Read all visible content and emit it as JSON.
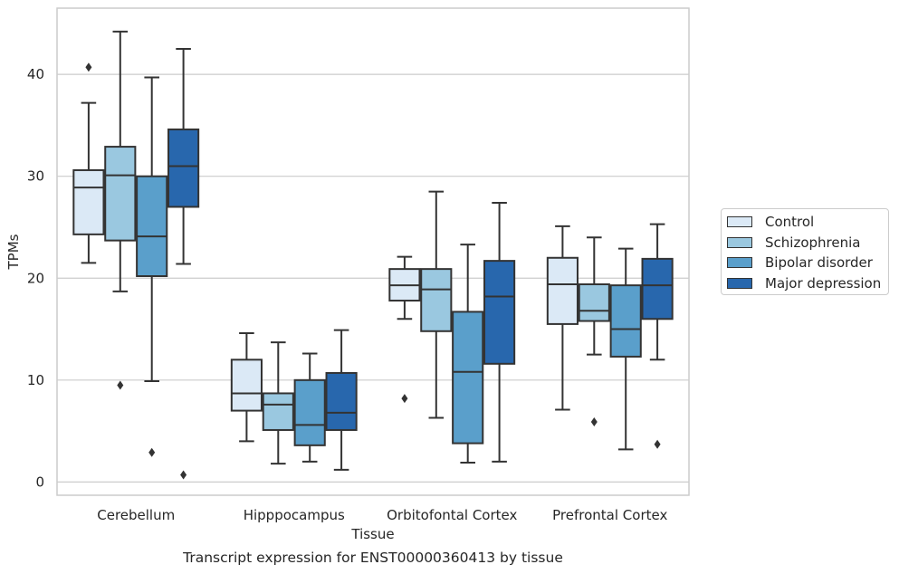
{
  "chart_data": {
    "type": "boxplot",
    "title": "Transcript expression for ENST00000360413 by tissue",
    "xlabel": "Tissue",
    "ylabel": "TPMs",
    "ylim": [
      -1.3,
      46.5
    ],
    "yticks": [
      0,
      10,
      20,
      30,
      40
    ],
    "grid": true,
    "legend_position": "right",
    "categories": [
      "Cerebellum",
      "Hipppocampus",
      "Orbitofontal Cortex",
      "Prefrontal Cortex"
    ],
    "series": [
      {
        "name": "Control",
        "color": "#dbe9f6",
        "boxes": [
          {
            "q1": 24.3,
            "median": 28.9,
            "q3": 30.6,
            "whisker_low": 21.5,
            "whisker_high": 37.2,
            "outliers": [
              40.7
            ]
          },
          {
            "q1": 7.0,
            "median": 8.7,
            "q3": 12.0,
            "whisker_low": 4.0,
            "whisker_high": 14.6,
            "outliers": []
          },
          {
            "q1": 17.8,
            "median": 19.3,
            "q3": 20.9,
            "whisker_low": 16.0,
            "whisker_high": 22.1,
            "outliers": [
              8.2
            ]
          },
          {
            "q1": 15.5,
            "median": 19.4,
            "q3": 22.0,
            "whisker_low": 7.1,
            "whisker_high": 25.1,
            "outliers": []
          }
        ]
      },
      {
        "name": "Schizophrenia",
        "color": "#9ac8e0",
        "boxes": [
          {
            "q1": 23.7,
            "median": 30.1,
            "q3": 32.9,
            "whisker_low": 18.7,
            "whisker_high": 44.2,
            "outliers": [
              9.5
            ]
          },
          {
            "q1": 5.1,
            "median": 7.6,
            "q3": 8.7,
            "whisker_low": 1.8,
            "whisker_high": 13.7,
            "outliers": []
          },
          {
            "q1": 14.8,
            "median": 18.9,
            "q3": 20.9,
            "whisker_low": 6.3,
            "whisker_high": 28.5,
            "outliers": []
          },
          {
            "q1": 15.8,
            "median": 16.8,
            "q3": 19.4,
            "whisker_low": 12.5,
            "whisker_high": 24.0,
            "outliers": [
              5.9
            ]
          }
        ]
      },
      {
        "name": "Bipolar disorder",
        "color": "#5a9fcb",
        "boxes": [
          {
            "q1": 20.2,
            "median": 24.1,
            "q3": 30.0,
            "whisker_low": 9.9,
            "whisker_high": 39.7,
            "outliers": [
              2.9
            ]
          },
          {
            "q1": 3.6,
            "median": 5.6,
            "q3": 10.0,
            "whisker_low": 2.0,
            "whisker_high": 12.6,
            "outliers": []
          },
          {
            "q1": 3.8,
            "median": 10.8,
            "q3": 16.7,
            "whisker_low": 1.9,
            "whisker_high": 23.3,
            "outliers": []
          },
          {
            "q1": 12.3,
            "median": 15.0,
            "q3": 19.3,
            "whisker_low": 3.2,
            "whisker_high": 22.9,
            "outliers": []
          }
        ]
      },
      {
        "name": "Major depression",
        "color": "#2867ad",
        "boxes": [
          {
            "q1": 27.0,
            "median": 31.0,
            "q3": 34.6,
            "whisker_low": 21.4,
            "whisker_high": 42.5,
            "outliers": [
              0.7
            ]
          },
          {
            "q1": 5.1,
            "median": 6.8,
            "q3": 10.7,
            "whisker_low": 1.2,
            "whisker_high": 14.9,
            "outliers": []
          },
          {
            "q1": 11.6,
            "median": 18.2,
            "q3": 21.7,
            "whisker_low": 2.0,
            "whisker_high": 27.4,
            "outliers": []
          },
          {
            "q1": 16.0,
            "median": 19.3,
            "q3": 21.9,
            "whisker_low": 12.0,
            "whisker_high": 25.3,
            "outliers": [
              3.7
            ]
          }
        ]
      }
    ]
  }
}
